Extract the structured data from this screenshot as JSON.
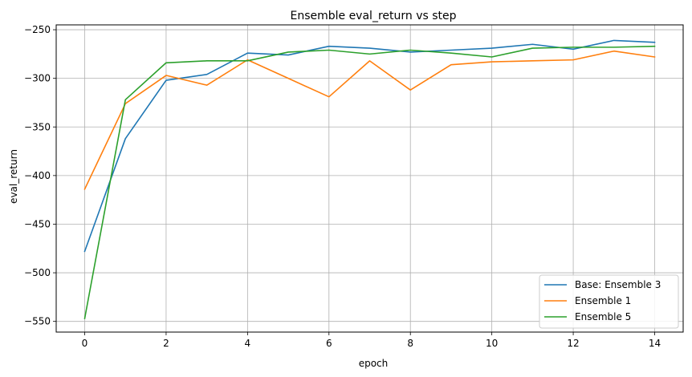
{
  "chart_data": {
    "type": "line",
    "title": "Ensemble eval_return vs step",
    "xlabel": "epoch",
    "ylabel": "eval_return",
    "xlim": [
      -0.7,
      14.7
    ],
    "ylim": [
      -561,
      -245
    ],
    "xticks": [
      0,
      2,
      4,
      6,
      8,
      10,
      12,
      14
    ],
    "yticks": [
      -550,
      -500,
      -450,
      -400,
      -350,
      -300,
      -250
    ],
    "grid": true,
    "legend_position": "lower-right",
    "x": [
      0,
      1,
      2,
      3,
      4,
      5,
      6,
      7,
      8,
      9,
      10,
      11,
      12,
      13,
      14
    ],
    "series": [
      {
        "name": "Base: Ensemble 3",
        "color": "#1f77b4",
        "values": [
          -478,
          -362,
          -302,
          -296,
          -274,
          -276,
          -267,
          -269,
          -273,
          -271,
          -269,
          -265,
          -270,
          -261,
          -263
        ]
      },
      {
        "name": "Ensemble 1",
        "color": "#ff7f0e",
        "values": [
          -414,
          -326,
          -297,
          -307,
          -281,
          -300,
          -319,
          -282,
          -312,
          -286,
          -283,
          -282,
          -281,
          -272,
          -278
        ]
      },
      {
        "name": "Ensemble 5",
        "color": "#2ca02c",
        "values": [
          -547,
          -322,
          -284,
          -282,
          -282,
          -273,
          -271,
          -275,
          -271,
          -274,
          -278,
          -269,
          -268,
          -268,
          -267
        ]
      }
    ]
  }
}
